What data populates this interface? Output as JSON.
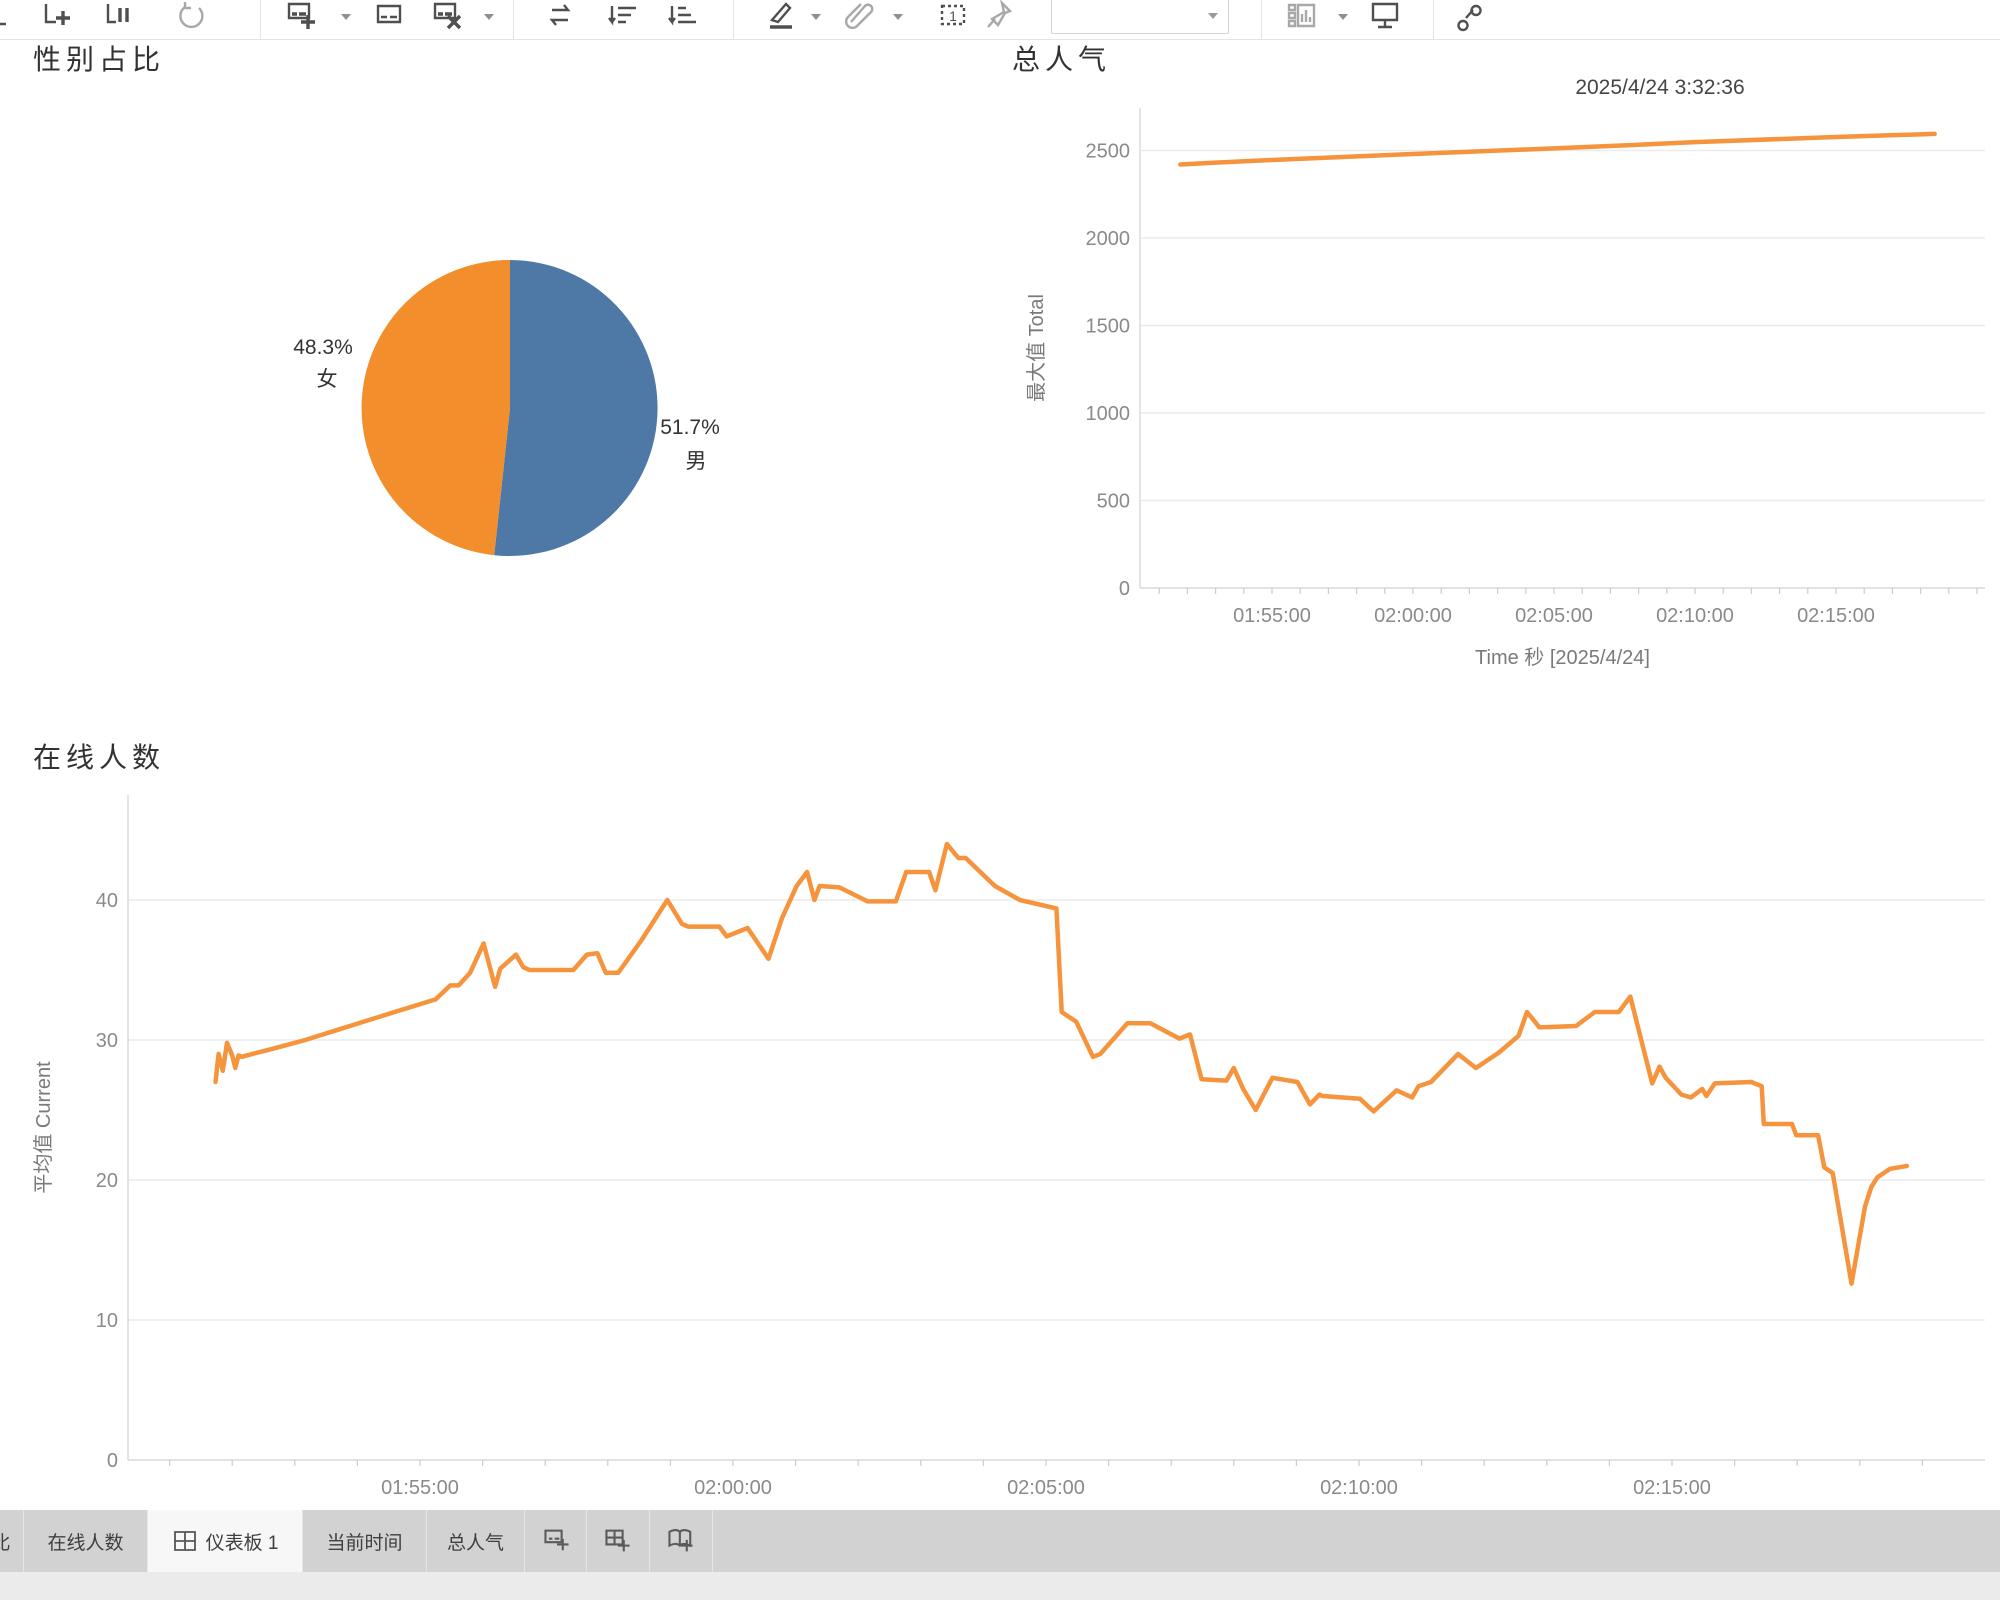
{
  "toolbar": {
    "icons": [
      {
        "name": "undo-partial-icon"
      },
      {
        "name": "add-data-source-icon"
      },
      {
        "name": "pause-auto-updates-icon"
      },
      {
        "name": "run-update-icon"
      },
      {
        "name": "new-worksheet-icon"
      },
      {
        "name": "duplicate-sheet-icon"
      },
      {
        "name": "clear-sheet-icon"
      },
      {
        "name": "swap-axes-icon"
      },
      {
        "name": "sort-descending-icon"
      },
      {
        "name": "sort-ascending-icon"
      },
      {
        "name": "highlight-icon"
      },
      {
        "name": "group-members-icon"
      },
      {
        "name": "show-mark-labels-icon"
      },
      {
        "name": "fix-axes-icon"
      },
      {
        "name": "show-hide-cards-icon"
      },
      {
        "name": "presentation-mode-icon"
      },
      {
        "name": "share-workbook-icon"
      }
    ],
    "fit_dropdown": {
      "value": ""
    }
  },
  "pie_panel": {
    "title": "性别占比",
    "slices": [
      {
        "label": "男",
        "pct": 51.7,
        "pct_text": "51.7%",
        "color": "#4e79a7"
      },
      {
        "label": "女",
        "pct": 48.3,
        "pct_text": "48.3%",
        "color": "#f28e2b"
      }
    ]
  },
  "total_chart": {
    "title": "总人气",
    "timestamp": "2025/4/24 3:32:36",
    "y_axis_title": "最大值 Total",
    "x_axis_title": "Time 秒 [2025/4/24]",
    "y_ticks": [
      0,
      500,
      1000,
      1500,
      2000,
      2500
    ],
    "x_tick_labels": [
      "01:55:00",
      "02:00:00",
      "02:05:00",
      "02:10:00",
      "02:15:00"
    ],
    "line_color": "#f5943d"
  },
  "online_chart": {
    "title": "在线人数",
    "y_axis_title": "平均值 Current",
    "y_ticks": [
      0,
      10,
      20,
      30,
      40
    ],
    "x_tick_labels": [
      "01:55:00",
      "02:00:00",
      "02:05:00",
      "02:10:00",
      "02:15:00"
    ],
    "line_color": "#f5943d"
  },
  "tabbar": {
    "tabs": [
      {
        "label": "性别占比",
        "partial": true
      },
      {
        "label": "在线人数"
      },
      {
        "label": "仪表板 1",
        "active": true,
        "icon": "dashboard-grid-icon"
      },
      {
        "label": "当前时间"
      },
      {
        "label": "总人气"
      }
    ],
    "buttons": [
      {
        "name": "new-worksheet-tab-button",
        "icon": "new-worksheet-plus-icon"
      },
      {
        "name": "new-dashboard-tab-button",
        "icon": "new-dashboard-plus-icon"
      },
      {
        "name": "new-story-tab-button",
        "icon": "new-story-plus-icon"
      }
    ]
  },
  "chart_data": [
    {
      "type": "pie",
      "title": "性别占比",
      "categories": [
        "男",
        "女"
      ],
      "values": [
        51.7,
        48.3
      ],
      "colors": [
        "#4e79a7",
        "#f28e2b"
      ],
      "unit": "%"
    },
    {
      "type": "line",
      "title": "总人气",
      "xlabel": "Time 秒 [2025/4/24]",
      "ylabel": "最大值 Total",
      "ylim": [
        0,
        2700
      ],
      "x_range": [
        "01:50:20",
        "02:20:15"
      ],
      "grid": true,
      "points": [
        [
          "01:51:45",
          2420
        ],
        [
          "01:53:00",
          2431
        ],
        [
          "01:55:00",
          2446
        ],
        [
          "02:00:00",
          2480
        ],
        [
          "02:05:00",
          2512
        ],
        [
          "02:07:30",
          2529
        ],
        [
          "02:10:00",
          2548
        ],
        [
          "02:15:00",
          2577
        ],
        [
          "02:18:30",
          2595
        ]
      ]
    },
    {
      "type": "line",
      "title": "在线人数",
      "xlabel": "",
      "ylabel": "平均值 Current",
      "ylim": [
        0,
        47
      ],
      "x_range": [
        "01:50:20",
        "02:20:00"
      ],
      "grid": true,
      "points": [
        [
          "01:51:44",
          27.0
        ],
        [
          "01:51:47",
          29.0
        ],
        [
          "01:51:51",
          27.8
        ],
        [
          "01:51:55",
          29.8
        ],
        [
          "01:52:00",
          28.9
        ],
        [
          "01:52:03",
          28.0
        ],
        [
          "01:52:06",
          28.9
        ],
        [
          "01:52:09",
          28.8
        ],
        [
          "01:52:40",
          29.4
        ],
        [
          "01:53:10",
          30.0
        ],
        [
          "01:53:40",
          30.7
        ],
        [
          "01:54:10",
          31.4
        ],
        [
          "01:54:40",
          32.1
        ],
        [
          "01:55:15",
          32.9
        ],
        [
          "01:55:29",
          33.9
        ],
        [
          "01:55:37",
          33.9
        ],
        [
          "01:55:48",
          34.8
        ],
        [
          "01:56:01",
          36.9
        ],
        [
          "01:56:12",
          33.8
        ],
        [
          "01:56:17",
          35.1
        ],
        [
          "01:56:32",
          36.1
        ],
        [
          "01:56:39",
          35.2
        ],
        [
          "01:56:45",
          35.0
        ],
        [
          "01:57:27",
          35.0
        ],
        [
          "01:57:40",
          36.1
        ],
        [
          "01:57:50",
          36.2
        ],
        [
          "01:57:58",
          34.8
        ],
        [
          "01:58:10",
          34.8
        ],
        [
          "01:58:32",
          37.1
        ],
        [
          "01:58:57",
          40.0
        ],
        [
          "01:59:11",
          38.3
        ],
        [
          "01:59:17",
          38.1
        ],
        [
          "01:59:47",
          38.1
        ],
        [
          "01:59:54",
          37.4
        ],
        [
          "02:00:14",
          38.0
        ],
        [
          "02:00:34",
          35.8
        ],
        [
          "02:00:47",
          38.7
        ],
        [
          "02:01:01",
          41.0
        ],
        [
          "02:01:11",
          42.0
        ],
        [
          "02:01:18",
          40.0
        ],
        [
          "02:01:23",
          41.0
        ],
        [
          "02:01:42",
          40.9
        ],
        [
          "02:02:09",
          39.9
        ],
        [
          "02:02:36",
          39.9
        ],
        [
          "02:02:46",
          42.0
        ],
        [
          "02:03:08",
          42.0
        ],
        [
          "02:03:14",
          40.7
        ],
        [
          "02:03:25",
          44.0
        ],
        [
          "02:03:36",
          43.0
        ],
        [
          "02:03:43",
          43.0
        ],
        [
          "02:04:11",
          41.0
        ],
        [
          "02:04:35",
          40.0
        ],
        [
          "02:05:10",
          39.4
        ],
        [
          "02:05:15",
          32.0
        ],
        [
          "02:05:29",
          31.3
        ],
        [
          "02:05:45",
          28.8
        ],
        [
          "02:05:52",
          29.0
        ],
        [
          "02:06:18",
          31.2
        ],
        [
          "02:06:40",
          31.2
        ],
        [
          "02:07:08",
          30.1
        ],
        [
          "02:07:18",
          30.4
        ],
        [
          "02:07:29",
          27.2
        ],
        [
          "02:07:53",
          27.1
        ],
        [
          "02:08:00",
          28.0
        ],
        [
          "02:08:09",
          26.5
        ],
        [
          "02:08:21",
          25.0
        ],
        [
          "02:08:37",
          27.3
        ],
        [
          "02:09:01",
          27.0
        ],
        [
          "02:09:13",
          25.4
        ],
        [
          "02:09:22",
          26.1
        ],
        [
          "02:09:25",
          26.0
        ],
        [
          "02:10:01",
          25.8
        ],
        [
          "02:10:14",
          24.9
        ],
        [
          "02:10:36",
          26.4
        ],
        [
          "02:10:51",
          25.9
        ],
        [
          "02:10:57",
          26.7
        ],
        [
          "02:11:09",
          27.0
        ],
        [
          "02:11:35",
          29.0
        ],
        [
          "02:11:52",
          28.0
        ],
        [
          "02:12:14",
          29.1
        ],
        [
          "02:12:33",
          30.3
        ],
        [
          "02:12:41",
          32.0
        ],
        [
          "02:12:53",
          30.9
        ],
        [
          "02:13:28",
          31.0
        ],
        [
          "02:13:46",
          32.0
        ],
        [
          "02:14:09",
          32.0
        ],
        [
          "02:14:20",
          33.1
        ],
        [
          "02:14:41",
          26.9
        ],
        [
          "02:14:48",
          28.1
        ],
        [
          "02:14:54",
          27.3
        ],
        [
          "02:15:09",
          26.1
        ],
        [
          "02:15:18",
          25.9
        ],
        [
          "02:15:29",
          26.5
        ],
        [
          "02:15:33",
          26.0
        ],
        [
          "02:15:41",
          26.9
        ],
        [
          "02:16:16",
          27.0
        ],
        [
          "02:16:26",
          26.7
        ],
        [
          "02:16:28",
          24.0
        ],
        [
          "02:16:55",
          24.0
        ],
        [
          "02:16:59",
          23.2
        ],
        [
          "02:17:20",
          23.2
        ],
        [
          "02:17:26",
          20.9
        ],
        [
          "02:17:34",
          20.5
        ],
        [
          "02:17:52",
          12.6
        ],
        [
          "02:18:05",
          18.1
        ],
        [
          "02:18:11",
          19.5
        ],
        [
          "02:18:17",
          20.2
        ],
        [
          "02:18:29",
          20.8
        ],
        [
          "02:18:45",
          21.0
        ]
      ]
    }
  ]
}
